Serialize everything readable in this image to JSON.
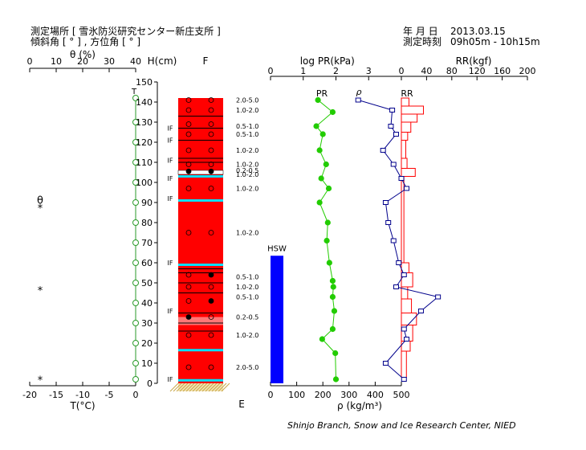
{
  "header": {
    "site_label": "測定場所 [ 雪氷防災研究センター新庄支所 ]",
    "angle_label": "傾斜角 [ ° ] , 方位角 [ ° ]",
    "date_label": "年 月 日",
    "date_value": "2013.03.15",
    "time_label": "測定時刻",
    "time_value": "09h05m - 10h15m"
  },
  "footer": "Shinjo Branch, Snow and Ice Research Center, NIED",
  "colors": {
    "snow": "#ff0000",
    "soft_snow": "#ff7777",
    "ice": "#00e0ff",
    "temperature": "#2a9a2a",
    "pr": "#22cc00",
    "density": "#00008b",
    "rr": "#ff0000",
    "hsw": "#0000ff",
    "ground": "#c8a848"
  },
  "chart_data": [
    {
      "type": "line",
      "name": "theta-temperature",
      "top_axis_label": "θ (%)",
      "top_ticks": [
        0,
        10,
        20,
        30,
        40
      ],
      "bottom_axis_label": "T(°C)",
      "bottom_ticks": [
        -20,
        -15,
        -10,
        -5,
        0
      ],
      "xlim": [
        -20,
        0
      ],
      "temperature": {
        "h": [
          2,
          10,
          20,
          30,
          40,
          50,
          60,
          70,
          80,
          90,
          100,
          110,
          120,
          130,
          142
        ],
        "t": [
          0,
          0,
          0,
          0,
          0,
          0,
          0,
          0,
          0,
          0,
          0,
          0,
          0,
          0,
          0
        ]
      },
      "theta_points": [
        {
          "label": "θ",
          "h": 91
        },
        {
          "label": "*",
          "h": 87
        },
        {
          "label": "*",
          "h": 46
        },
        {
          "label": "*",
          "h": 1.5
        }
      ],
      "top_marker": "T"
    },
    {
      "type": "bar",
      "name": "snow-profile",
      "y_axis_label": "H(cm)",
      "ylim": [
        0,
        150
      ],
      "yticks": [
        0,
        10,
        20,
        30,
        40,
        50,
        60,
        70,
        80,
        90,
        100,
        110,
        120,
        130,
        140,
        150
      ],
      "top_label": "F",
      "bottom_label": "E",
      "column_top": 142,
      "ice_layers": [
        1.5,
        16.5,
        59,
        91,
        103
      ],
      "soft_layers": [
        [
          29,
          33
        ]
      ],
      "white_layers": [
        [
          104,
          106
        ]
      ],
      "black_lines": [
        26,
        30,
        35,
        45,
        50,
        55,
        57,
        127,
        133,
        121,
        112,
        110
      ],
      "grain_rows": [
        {
          "h": 141,
          "filled": [
            false,
            false
          ]
        },
        {
          "h": 136,
          "filled": [
            false,
            false
          ]
        },
        {
          "h": 129,
          "filled": [
            false,
            false
          ]
        },
        {
          "h": 124,
          "filled": [
            false,
            false
          ]
        },
        {
          "h": 116,
          "filled": [
            false,
            false
          ]
        },
        {
          "h": 109,
          "filled": [
            false,
            false
          ]
        },
        {
          "h": 105.5,
          "filled": [
            true,
            true
          ]
        },
        {
          "h": 97,
          "filled": [
            false,
            false
          ]
        },
        {
          "h": 75,
          "filled": [
            false,
            false
          ]
        },
        {
          "h": 54,
          "filled": [
            false,
            true
          ]
        },
        {
          "h": 48,
          "filled": [
            false,
            false
          ]
        },
        {
          "h": 41,
          "filled": [
            false,
            true
          ]
        },
        {
          "h": 33,
          "filled": [
            true,
            false
          ]
        },
        {
          "h": 24,
          "filled": [
            false,
            false
          ]
        },
        {
          "h": 8,
          "filled": [
            false,
            false
          ]
        }
      ],
      "if_labels": [
        {
          "text": "IF",
          "h": 127
        },
        {
          "text": "IF",
          "h": 121
        },
        {
          "text": "IF",
          "h": 111
        },
        {
          "text": "IF",
          "h": 102
        },
        {
          "text": "IF",
          "h": 92
        },
        {
          "text": "IF",
          "h": 60
        },
        {
          "text": "IF",
          "h": 36
        },
        {
          "text": "IF",
          "h": 2
        }
      ],
      "grain_size_labels": [
        {
          "text": "2.0-5.0",
          "h": 141
        },
        {
          "text": "1.0-2.0",
          "h": 136
        },
        {
          "text": "0.5-1.0",
          "h": 128
        },
        {
          "text": "0.5-1.0",
          "h": 124
        },
        {
          "text": "1.0-2.0",
          "h": 116
        },
        {
          "text": "1.0-2.0",
          "h": 109
        },
        {
          "text": "0.2-0.5",
          "h": 106
        },
        {
          "text": "1.0-2.0",
          "h": 104
        },
        {
          "text": "1.0-2.0",
          "h": 97
        },
        {
          "text": "1.0-2.0",
          "h": 75
        },
        {
          "text": "0.5-1.0",
          "h": 53
        },
        {
          "text": "1.0-2.0",
          "h": 48
        },
        {
          "text": "0.5-1.0",
          "h": 43
        },
        {
          "text": "0.2-0.5",
          "h": 33
        },
        {
          "text": "1.0-2.0",
          "h": 24
        },
        {
          "text": "2.0-5.0",
          "h": 8
        }
      ]
    },
    {
      "type": "line",
      "name": "pr-density-rr",
      "pr_axis_label": "log PR(kPa)",
      "pr_ticks": [
        0,
        1,
        2,
        3
      ],
      "pr_label": "PR",
      "pr": {
        "h": [
          141,
          135,
          128,
          124,
          116,
          109,
          102,
          97,
          90,
          80,
          71,
          60,
          51,
          48,
          43,
          36,
          27,
          22,
          15,
          2
        ],
        "log_pr": [
          1.45,
          1.9,
          1.4,
          1.6,
          1.5,
          1.7,
          1.55,
          1.78,
          1.5,
          1.75,
          1.72,
          1.8,
          1.9,
          1.92,
          1.9,
          1.95,
          1.9,
          1.58,
          1.98,
          2.0
        ]
      },
      "density_axis_label": "ρ (kg/m³)",
      "density_ticks": [
        0,
        100,
        200,
        300,
        400,
        500
      ],
      "density_label": "ρ",
      "hsw_label": "HSW",
      "hsw_h": 63.5,
      "density": {
        "h": [
          141,
          136,
          128,
          124,
          116,
          109,
          102,
          97,
          90,
          80,
          71,
          60,
          54,
          48,
          43,
          36,
          27,
          22,
          10,
          2
        ],
        "rho": [
          335,
          465,
          460,
          480,
          430,
          470,
          500,
          520,
          440,
          450,
          470,
          490,
          510,
          480,
          640,
          575,
          510,
          520,
          440,
          510
        ]
      },
      "rr_axis_label": "RR(kgf)",
      "rr_ticks": [
        0,
        40,
        80,
        120,
        160,
        200
      ],
      "rr_label": "RR",
      "rr": [
        {
          "from": 138,
          "to": 142,
          "kgf": 12
        },
        {
          "from": 134,
          "to": 138,
          "kgf": 35
        },
        {
          "from": 130,
          "to": 134,
          "kgf": 25
        },
        {
          "from": 125,
          "to": 130,
          "kgf": 15
        },
        {
          "from": 121,
          "to": 125,
          "kgf": 10
        },
        {
          "from": 112,
          "to": 121,
          "kgf": 7
        },
        {
          "from": 107,
          "to": 112,
          "kgf": 9
        },
        {
          "from": 103,
          "to": 107,
          "kgf": 22
        },
        {
          "from": 60,
          "to": 103,
          "kgf": 4
        },
        {
          "from": 55,
          "to": 60,
          "kgf": 12
        },
        {
          "from": 48,
          "to": 55,
          "kgf": 18
        },
        {
          "from": 42,
          "to": 48,
          "kgf": 10
        },
        {
          "from": 35,
          "to": 42,
          "kgf": 16
        },
        {
          "from": 29,
          "to": 35,
          "kgf": 24
        },
        {
          "from": 21,
          "to": 29,
          "kgf": 18
        },
        {
          "from": 16,
          "to": 21,
          "kgf": 14
        },
        {
          "from": 3,
          "to": 16,
          "kgf": 8
        }
      ]
    }
  ]
}
